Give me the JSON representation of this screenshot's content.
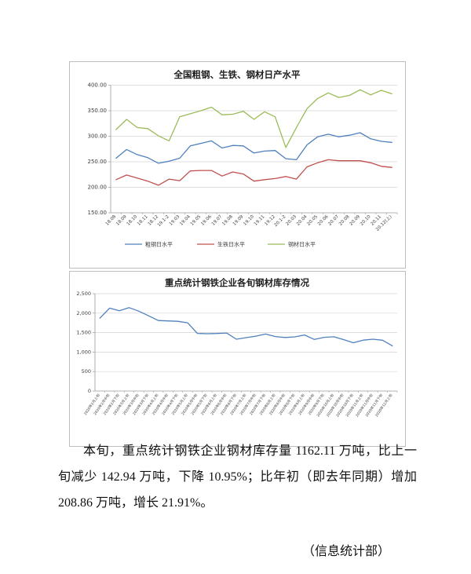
{
  "page": {
    "paragraph": "本旬，重点统计钢铁企业钢材库存量 1162.11 万吨，比上一旬减少 142.94 万吨，下降 10.95%；比年初（即去年同期）增加 208.86 万吨，增长 21.91%。",
    "signature": "（信息统计部）"
  },
  "chart_data": [
    {
      "type": "line",
      "title": "全国粗钢、生铁、钢材日产水平",
      "categories": [
        "18.08",
        "18.09",
        "18.10",
        "18.11",
        "18.12",
        "19.1-2",
        "19.03",
        "19.04",
        "19.05",
        "19.06",
        "19.07",
        "19.08",
        "19.09",
        "19.10",
        "19.11",
        "19.12",
        "20.1-2",
        "20.03",
        "20.04",
        "20.05",
        "20.06",
        "20.07",
        "20.08",
        "20.09",
        "20.10",
        "20.11",
        "20.12(上)"
      ],
      "series": [
        {
          "name": "粗钢日水平",
          "color": "#4F81BD",
          "values": [
            257,
            274,
            264,
            258,
            247,
            251,
            257,
            281,
            286,
            291,
            277,
            282,
            281,
            267,
            271,
            272,
            256,
            254,
            283,
            299,
            304,
            299,
            302,
            307,
            295,
            290,
            288
          ]
        },
        {
          "name": "生铁日水平",
          "color": "#C0504D",
          "values": [
            215,
            224,
            218,
            212,
            204,
            216,
            213,
            232,
            233,
            233,
            222,
            230,
            226,
            212,
            215,
            217,
            221,
            216,
            240,
            248,
            254,
            252,
            252,
            252,
            248,
            241,
            239
          ]
        },
        {
          "name": "钢材日水平",
          "color": "#9BBB59",
          "values": [
            313,
            333,
            317,
            315,
            301,
            291,
            338,
            344,
            350,
            357,
            342,
            343,
            349,
            333,
            348,
            338,
            278,
            317,
            354,
            374,
            385,
            376,
            380,
            391,
            381,
            390,
            383
          ]
        }
      ],
      "ylim": [
        150,
        400
      ],
      "ytick_step": 50,
      "ytick_labels": [
        "150.00",
        "200.00",
        "250.00",
        "300.00",
        "350.00",
        "400.00"
      ],
      "grid": true,
      "legend_position": "bottom"
    },
    {
      "type": "line",
      "title": "重点统计钢铁企业各旬钢材库存情况",
      "categories": [
        "2020年2月上旬",
        "2020年2月中旬",
        "2020年2月下旬",
        "2020年3月上旬",
        "2020年3月中旬",
        "2020年3月下旬",
        "2020年4月上旬",
        "2020年4月中旬",
        "2020年4月下旬",
        "2020年5月上旬",
        "2020年5月中旬",
        "2020年5月下旬",
        "2020年6月上旬",
        "2020年6月中旬",
        "2020年6月下旬",
        "2020年7月上旬",
        "2020年7月中旬",
        "2020年7月下旬",
        "2020年8月上旬",
        "2020年8月中旬",
        "2020年8月下旬",
        "2020年9月上旬",
        "2020年9月中旬",
        "2020年9月下旬",
        "2020年10月上旬",
        "2020年10月中旬",
        "2020年10月下旬",
        "2020年11月上旬",
        "2020年11月中旬",
        "2020年11月下旬",
        "2020年12月上旬"
      ],
      "series": [
        {
          "name": "钢材库存量",
          "color": "#4F81BD",
          "values": [
            1871,
            2130,
            2060,
            2141,
            2050,
            1931,
            1811,
            1801,
            1791,
            1752,
            1480,
            1471,
            1478,
            1490,
            1331,
            1371,
            1410,
            1464,
            1400,
            1376,
            1391,
            1440,
            1325,
            1380,
            1394,
            1320,
            1240,
            1306,
            1331,
            1305.05,
            1162.11
          ]
        }
      ],
      "ylim": [
        0,
        2500
      ],
      "ytick_step": 500,
      "ytick_labels": [
        "0",
        "500",
        "1,000",
        "1,500",
        "2,000",
        "2,500"
      ],
      "grid": true,
      "legend_position": "none"
    }
  ]
}
